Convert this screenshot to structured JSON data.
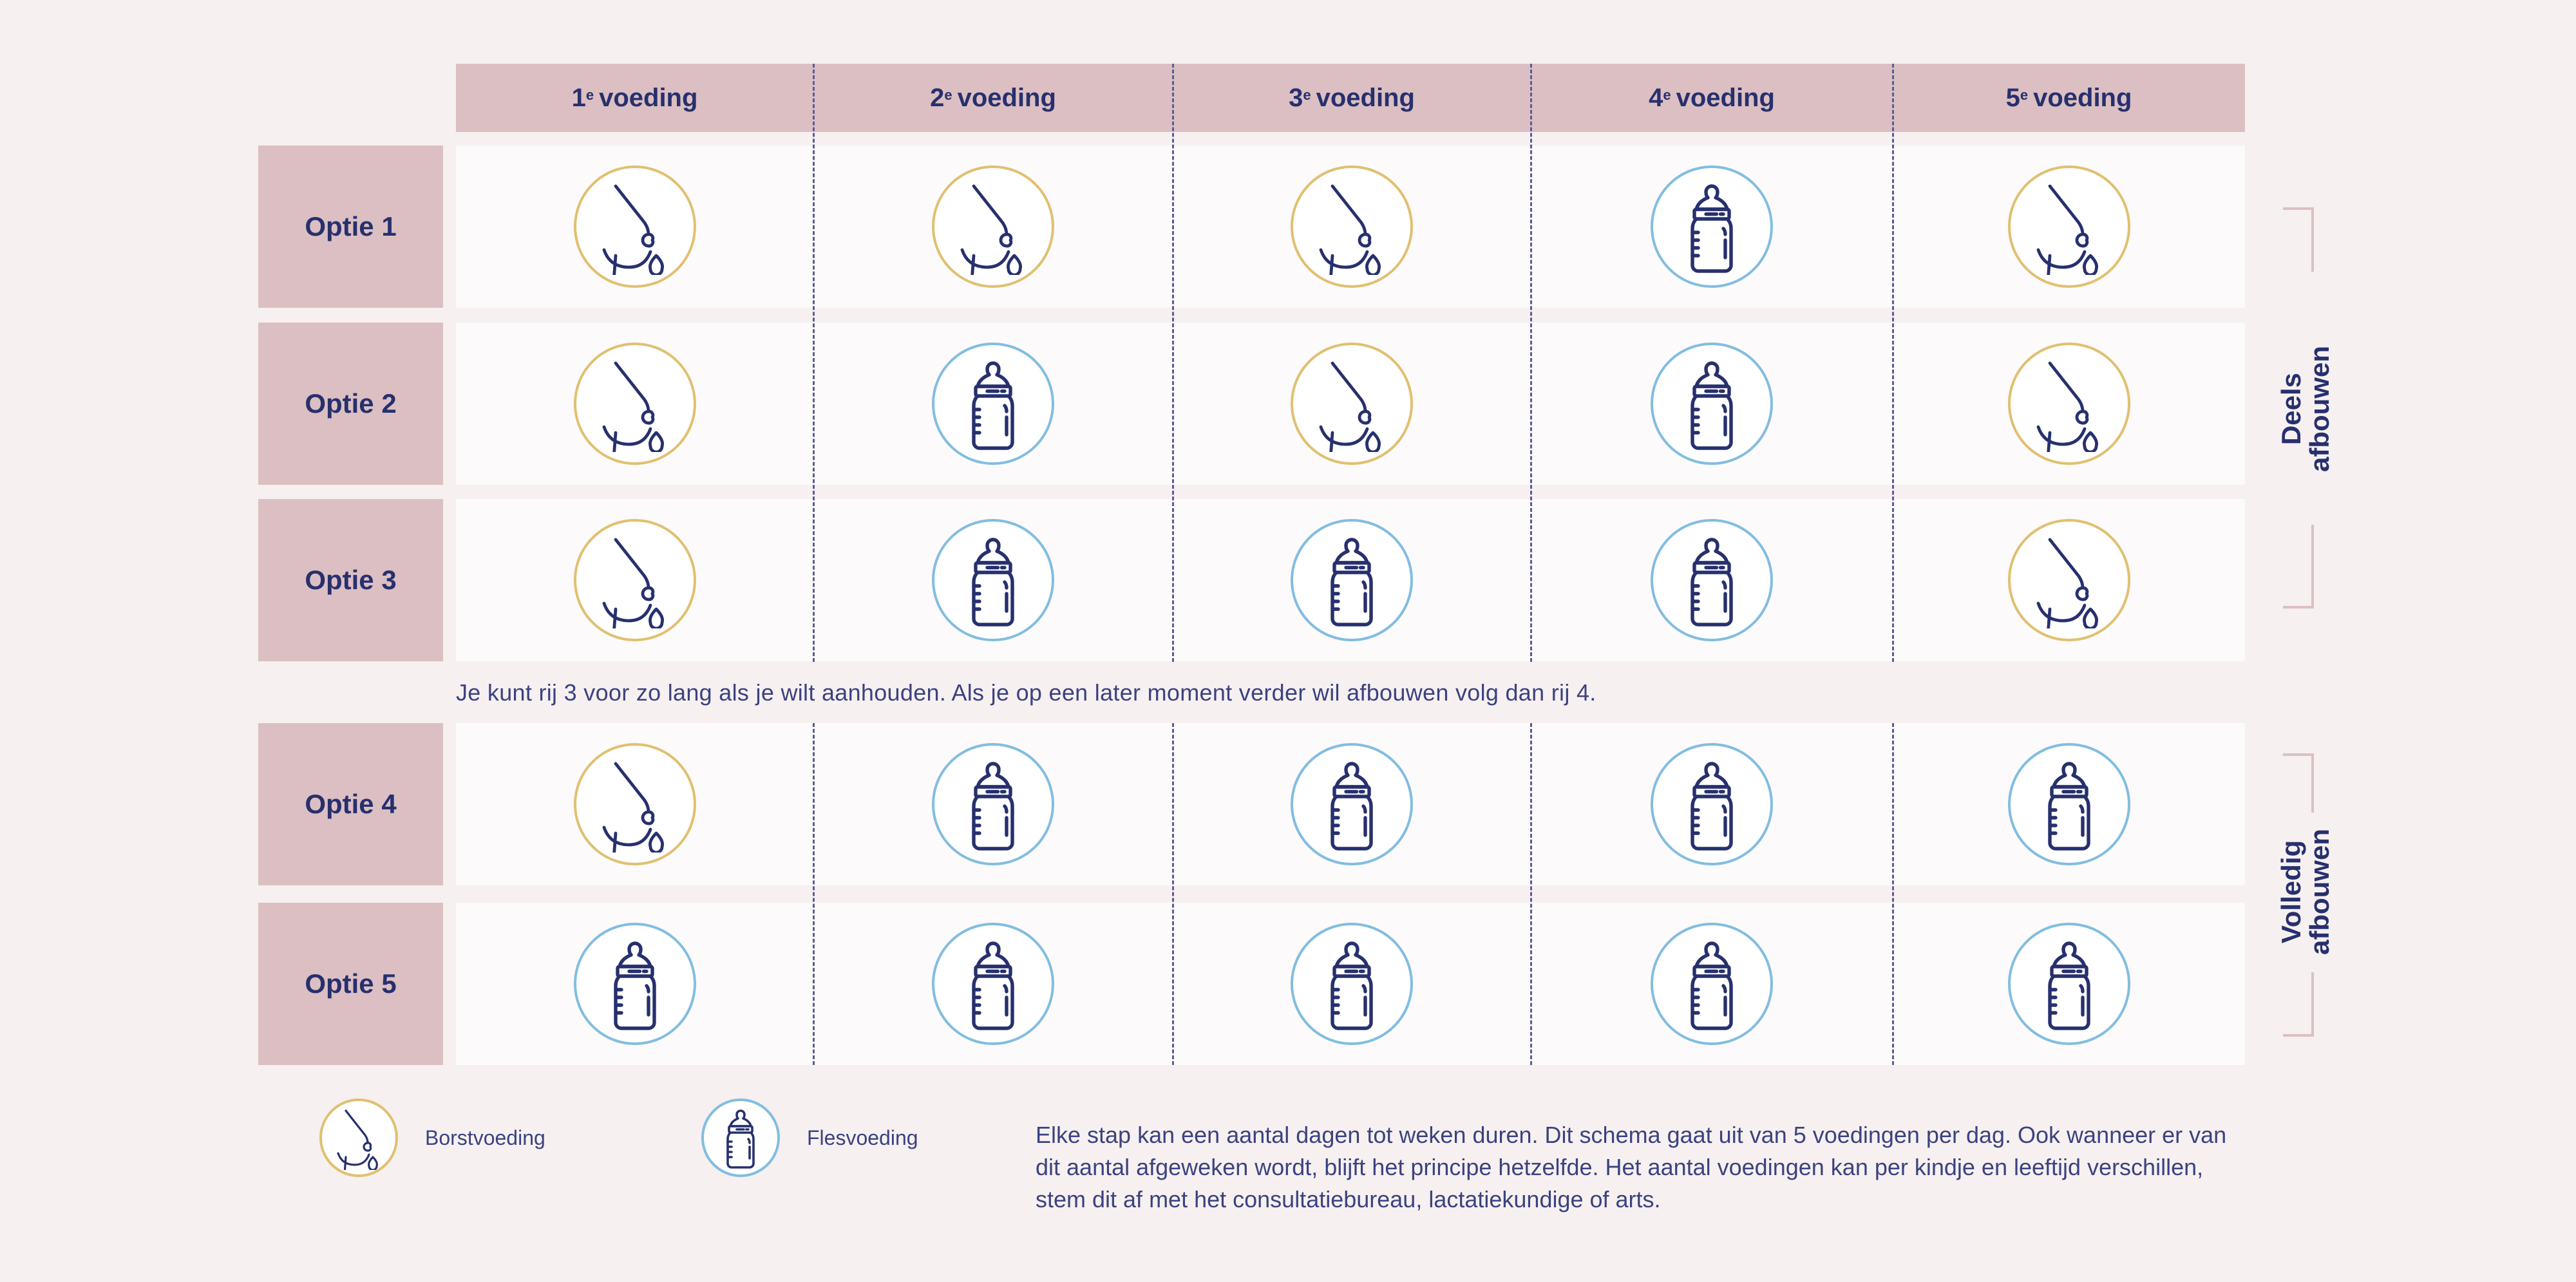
{
  "header": {
    "columns": [
      {
        "num": "1",
        "sup": "e",
        "label": "voeding"
      },
      {
        "num": "2",
        "sup": "e",
        "label": "voeding"
      },
      {
        "num": "3",
        "sup": "e",
        "label": "voeding"
      },
      {
        "num": "4",
        "sup": "e",
        "label": "voeding"
      },
      {
        "num": "5",
        "sup": "e",
        "label": "voeding"
      }
    ]
  },
  "rows": [
    {
      "label": "Optie 1",
      "cells": [
        "breast",
        "breast",
        "breast",
        "bottle",
        "breast"
      ]
    },
    {
      "label": "Optie 2",
      "cells": [
        "breast",
        "bottle",
        "breast",
        "bottle",
        "breast"
      ]
    },
    {
      "label": "Optie 3",
      "cells": [
        "breast",
        "bottle",
        "bottle",
        "bottle",
        "breast"
      ]
    },
    {
      "label": "Optie 4",
      "cells": [
        "breast",
        "bottle",
        "bottle",
        "bottle",
        "bottle"
      ]
    },
    {
      "label": "Optie 5",
      "cells": [
        "bottle",
        "bottle",
        "bottle",
        "bottle",
        "bottle"
      ]
    }
  ],
  "note": "Je kunt rij 3 voor zo lang als je wilt aanhouden. Als je op een later moment verder wil afbouwen volg dan rij 4.",
  "groups": [
    {
      "line1": "Deels",
      "line2": "afbouwen"
    },
    {
      "line1": "Volledig",
      "line2": "afbouwen"
    }
  ],
  "legend": {
    "breast": {
      "icon": "breast-feeding-icon",
      "label": "Borstvoeding"
    },
    "bottle": {
      "icon": "bottle-icon",
      "label": "Flesvoeding"
    }
  },
  "paragraph": "Elke stap kan een aantal dagen tot weken duren. Dit schema gaat uit van 5 voedingen per dag. Ook wanneer er van dit aantal afgeweken wordt, blijft het principe hetzelfde. Het aantal voedingen kan per kindje en leeftijd verschillen, stem dit af met het consultatiebureau, lactatiekundige of arts.",
  "colors": {
    "navy": "#27306e",
    "rose": "#dcbfc2",
    "background": "#f6f0f0",
    "breast_ring": "#e0c070",
    "bottle_ring": "#82bde0"
  }
}
